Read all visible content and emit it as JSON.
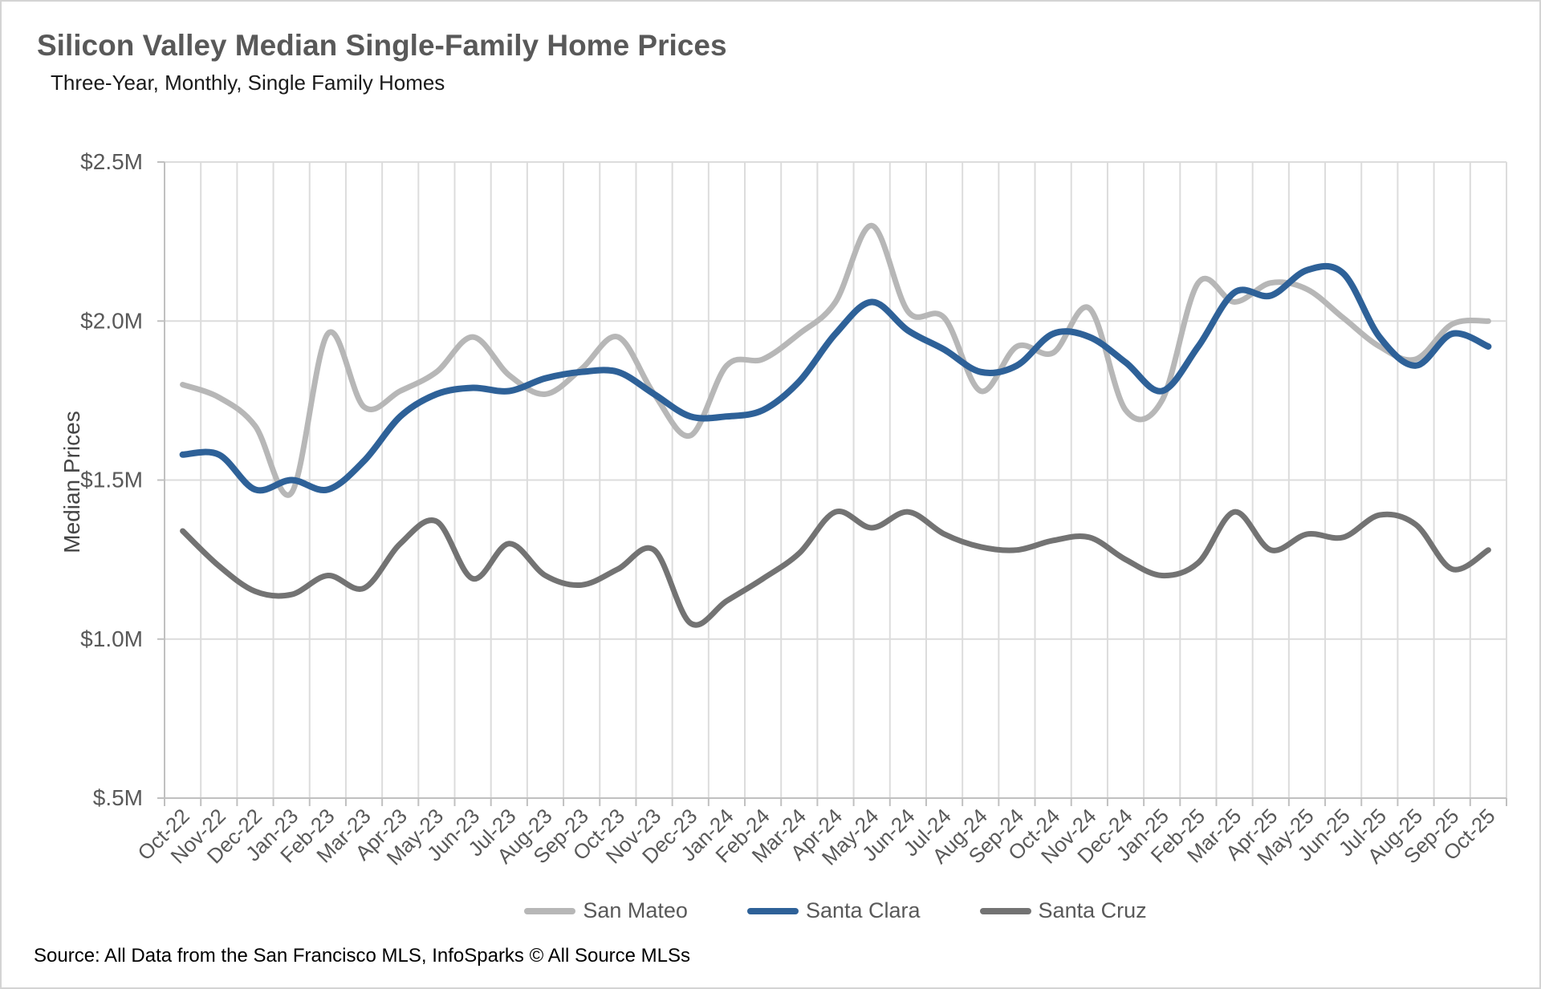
{
  "header": {
    "title": "Silicon Valley Median Single-Family Home Prices",
    "subtitle": "Three-Year, Monthly, Single Family Homes"
  },
  "footer": {
    "source": "Source: All Data from the San Francisco MLS, InfoSparks © All Source MLSs"
  },
  "colors": {
    "grid": "#dcdcdc",
    "axis": "#c0c0c0",
    "tick_label": "#595959",
    "title_gray": "#595959"
  },
  "chart_data": {
    "type": "line",
    "title": "Silicon Valley Median Single-Family Home Prices",
    "subtitle": "Three-Year, Monthly, Single Family Homes",
    "xlabel": "",
    "ylabel": "Median Prices",
    "ylim": [
      0.5,
      2.5
    ],
    "y_tick_labels": [
      "$2.5M",
      "$2.0M",
      "$1.5M",
      "$1.0M",
      "$.5M"
    ],
    "y_tick_values": [
      2.5,
      2.0,
      1.5,
      1.0,
      0.5
    ],
    "grid": "both",
    "legend_position": "bottom",
    "smoothed_lines": true,
    "categories": [
      "Oct-22",
      "Nov-22",
      "Dec-22",
      "Jan-23",
      "Feb-23",
      "Mar-23",
      "Apr-23",
      "May-23",
      "Jun-23",
      "Jul-23",
      "Aug-23",
      "Sep-23",
      "Oct-23",
      "Nov-23",
      "Dec-23",
      "Jan-24",
      "Feb-24",
      "Mar-24",
      "Apr-24",
      "May-24",
      "Jun-24",
      "Jul-24",
      "Aug-24",
      "Sep-24",
      "Oct-24",
      "Nov-24",
      "Dec-24",
      "Jan-25",
      "Feb-25",
      "Mar-25",
      "Apr-25",
      "May-25",
      "Jun-25",
      "Jul-25",
      "Aug-25",
      "Sep-25",
      "Oct-25"
    ],
    "series": [
      {
        "name": "San Mateo",
        "color": "#b7b7b7",
        "stroke_width": 7,
        "values": [
          1.8,
          1.76,
          1.67,
          1.46,
          1.96,
          1.73,
          1.78,
          1.84,
          1.95,
          1.83,
          1.77,
          1.85,
          1.95,
          1.77,
          1.64,
          1.86,
          1.88,
          1.96,
          2.06,
          2.3,
          2.03,
          2.01,
          1.78,
          1.92,
          1.9,
          2.04,
          1.72,
          1.75,
          2.12,
          2.06,
          2.12,
          2.1,
          2.01,
          1.92,
          1.88,
          1.99,
          2.0
        ]
      },
      {
        "name": "Santa Clara",
        "color": "#2e6198",
        "stroke_width": 8,
        "values": [
          1.58,
          1.58,
          1.47,
          1.5,
          1.47,
          1.56,
          1.7,
          1.77,
          1.79,
          1.78,
          1.82,
          1.84,
          1.84,
          1.77,
          1.7,
          1.7,
          1.72,
          1.81,
          1.96,
          2.06,
          1.97,
          1.91,
          1.84,
          1.86,
          1.96,
          1.95,
          1.87,
          1.78,
          1.92,
          2.09,
          2.08,
          2.16,
          2.15,
          1.95,
          1.86,
          1.96,
          1.92
        ]
      },
      {
        "name": "Santa Cruz",
        "color": "#737373",
        "stroke_width": 7,
        "values": [
          1.34,
          1.23,
          1.15,
          1.14,
          1.2,
          1.16,
          1.3,
          1.37,
          1.19,
          1.3,
          1.2,
          1.17,
          1.22,
          1.28,
          1.05,
          1.12,
          1.19,
          1.27,
          1.4,
          1.35,
          1.4,
          1.33,
          1.29,
          1.28,
          1.31,
          1.32,
          1.25,
          1.2,
          1.24,
          1.4,
          1.28,
          1.33,
          1.32,
          1.39,
          1.36,
          1.22,
          1.28
        ]
      }
    ]
  }
}
